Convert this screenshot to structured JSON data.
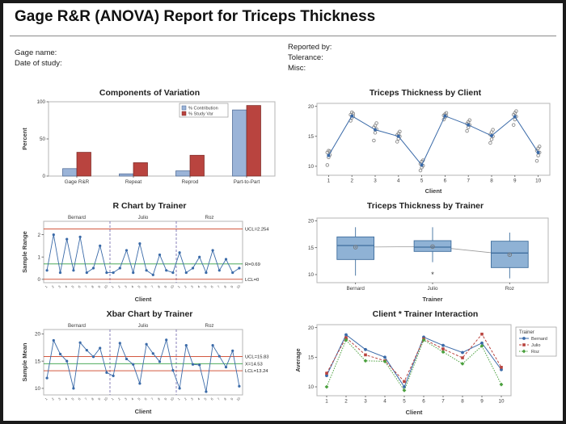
{
  "report": {
    "title": "Gage R&R (ANOVA) Report for Triceps Thickness",
    "fields_left": [
      "Gage name:",
      "Date of study:"
    ],
    "fields_right": [
      "Reported by:",
      "Tolerance:",
      "Misc:"
    ]
  },
  "colors": {
    "data_blue": "#3a6aa8",
    "bar_blue": "#9bb4d8",
    "bar_red": "#b9443f",
    "limit_red": "#cc4125",
    "center_green": "#329e42"
  },
  "chart_data": [
    {
      "id": "components-of-variation",
      "type": "bar",
      "title": "Components of Variation",
      "ylabel": "Percent",
      "categories": [
        "Gage R&R",
        "Repeat",
        "Reprod",
        "Part-to-Part"
      ],
      "series": [
        {
          "name": "% Contribution",
          "color": "#9bb4d8",
          "border": "#44618f",
          "values": [
            10,
            3,
            7,
            89
          ]
        },
        {
          "name": "% Study Var",
          "color": "#b9443f",
          "border": "#7a2723",
          "values": [
            32,
            18,
            28,
            95
          ]
        }
      ],
      "ylim": [
        0,
        100
      ],
      "yticks": [
        0,
        50,
        100
      ],
      "legend_position": "top-right"
    },
    {
      "id": "thickness-by-client",
      "type": "scatter_line",
      "title": "Triceps Thickness by Client",
      "xlabel": "Client",
      "x": [
        1,
        2,
        3,
        4,
        5,
        6,
        7,
        8,
        9,
        10
      ],
      "means": [
        11.8,
        18.4,
        16.1,
        15.0,
        10.2,
        18.4,
        16.9,
        15.1,
        18.3,
        12.3
      ],
      "points": [
        [
          10.2,
          11.5,
          11.9,
          12.3,
          12.6,
          12.5
        ],
        [
          17.6,
          18.1,
          18.4,
          18.6,
          19.0,
          18.8
        ],
        [
          14.3,
          15.6,
          16.2,
          16.5,
          16.8,
          17.2
        ],
        [
          14.1,
          14.6,
          15.0,
          15.2,
          15.5,
          15.8
        ],
        [
          9.3,
          9.8,
          10.1,
          10.4,
          10.8,
          11.0
        ],
        [
          17.8,
          18.2,
          18.4,
          18.5,
          18.7,
          18.9
        ],
        [
          15.9,
          16.5,
          16.9,
          17.1,
          17.4,
          17.7
        ],
        [
          13.9,
          14.5,
          15.0,
          15.3,
          15.7,
          16.1
        ],
        [
          16.9,
          17.8,
          18.3,
          18.6,
          18.9,
          19.2
        ],
        [
          10.9,
          11.8,
          12.3,
          12.6,
          13.0,
          13.3
        ]
      ],
      "line_color": "#3a6aa8",
      "point_color": "#8a8a8a",
      "ylim": [
        8.5,
        20.5
      ],
      "yticks": [
        10,
        15,
        20
      ]
    },
    {
      "id": "r-chart-by-trainer",
      "type": "control",
      "title": "R Chart by Trainer",
      "ylabel": "Sample Range",
      "xlabel": "Client",
      "panels": [
        "Bernard",
        "Julio",
        "Roz"
      ],
      "values": [
        [
          0.4,
          2.0,
          0.3,
          1.8,
          0.4,
          1.9,
          0.3,
          0.5,
          1.5,
          0.3
        ],
        [
          0.3,
          0.5,
          1.3,
          0.3,
          1.6,
          0.4,
          0.2,
          1.1,
          0.4,
          0.3
        ],
        [
          1.2,
          0.3,
          0.5,
          1.0,
          0.3,
          1.3,
          0.4,
          0.9,
          0.3,
          0.5
        ]
      ],
      "ucl": 2.254,
      "center": 0.69,
      "lcl": 0,
      "labels": {
        "ucl": "UCL=2.254",
        "center": "R=0.69",
        "lcl": "LCL=0"
      },
      "line_color": "#3a6aa8",
      "limit_color": "#cc4125",
      "center_color": "#329e42",
      "ylim": [
        -0.15,
        2.6
      ],
      "yticks": [
        0,
        1,
        2
      ]
    },
    {
      "id": "thickness-by-trainer",
      "type": "boxplot",
      "title": "Triceps Thickness by Trainer",
      "xlabel": "Trainer",
      "categories": [
        "Bernard",
        "Julio",
        "Roz"
      ],
      "boxes": [
        {
          "lo": 9.8,
          "q1": 12.8,
          "med": 15.4,
          "q3": 17.0,
          "hi": 18.8,
          "mean": 15.1,
          "outliers": []
        },
        {
          "lo": 12.3,
          "q1": 14.3,
          "med": 15.1,
          "q3": 16.3,
          "hi": 18.8,
          "mean": 15.2,
          "outliers": [
            10.0
          ]
        },
        {
          "lo": 9.3,
          "q1": 11.3,
          "med": 14.0,
          "q3": 16.2,
          "hi": 17.8,
          "mean": 13.7,
          "outliers": []
        }
      ],
      "box_fill": "#8fb2d5",
      "box_border": "#3f6e9e",
      "ylim": [
        8.5,
        20.5
      ],
      "yticks": [
        10,
        15,
        20
      ]
    },
    {
      "id": "xbar-chart-by-trainer",
      "type": "control",
      "title": "Xbar Chart by Trainer",
      "ylabel": "Sample Mean",
      "xlabel": "Client",
      "panels": [
        "Bernard",
        "Julio",
        "Roz"
      ],
      "values": [
        [
          11.9,
          18.8,
          16.3,
          15.0,
          10.0,
          18.4,
          17.0,
          15.8,
          17.4,
          12.9
        ],
        [
          12.3,
          18.3,
          15.4,
          14.4,
          10.9,
          18.1,
          16.4,
          14.9,
          18.9,
          13.3
        ],
        [
          10.0,
          17.9,
          14.4,
          14.3,
          9.4,
          17.9,
          15.9,
          13.9,
          16.9,
          10.4
        ]
      ],
      "ucl": 15.83,
      "center": 14.53,
      "lcl": 13.24,
      "labels": {
        "ucl": "UCL=15.83",
        "center": "X=14.53",
        "lcl": "LCL=13.24"
      },
      "line_color": "#3a6aa8",
      "limit_color": "#cc4125",
      "center_color": "#329e42",
      "ylim": [
        8.8,
        20.8
      ],
      "yticks": [
        10,
        15,
        20
      ]
    },
    {
      "id": "client-trainer-interaction",
      "type": "interaction",
      "title": "Client * Trainer Interaction",
      "xlabel": "Client",
      "ylabel": "Average",
      "legend_title": "Trainer",
      "x": [
        1,
        2,
        3,
        4,
        5,
        6,
        7,
        8,
        9,
        10
      ],
      "series": [
        {
          "name": "Bernard",
          "color": "#3a6aa8",
          "marker": "circle",
          "dash": "",
          "values": [
            11.9,
            18.8,
            16.3,
            15.0,
            10.0,
            18.4,
            17.0,
            15.8,
            17.4,
            12.9
          ]
        },
        {
          "name": "Julio",
          "color": "#b9443f",
          "marker": "square",
          "dash": "3,2",
          "values": [
            12.3,
            18.3,
            15.4,
            14.4,
            10.9,
            18.1,
            16.4,
            14.9,
            18.9,
            13.3
          ]
        },
        {
          "name": "Roz",
          "color": "#4ba03e",
          "marker": "diamond",
          "dash": "1.5,1.5",
          "values": [
            10.0,
            17.9,
            14.4,
            14.3,
            9.4,
            17.9,
            15.9,
            13.9,
            16.9,
            10.4
          ]
        }
      ],
      "ylim": [
        8.5,
        20.5
      ],
      "yticks": [
        10,
        15,
        20
      ]
    }
  ]
}
